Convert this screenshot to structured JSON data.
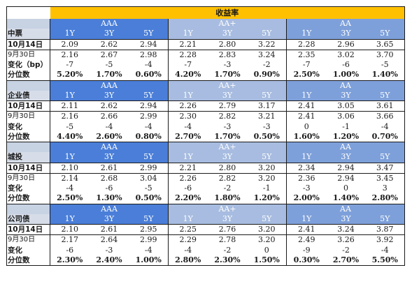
{
  "title": "收益率",
  "ratings": [
    "AAA",
    "AA+",
    "AA"
  ],
  "tenors": [
    "1Y",
    "3Y",
    "5Y"
  ],
  "sections": [
    {
      "name": "中票",
      "rows": [
        {
          "label": "10月14日",
          "values": [
            "2.09",
            "2.62",
            "2.94",
            "2.21",
            "2.80",
            "3.22",
            "2.28",
            "2.96",
            "3.65"
          ]
        },
        {
          "label": "9月30日",
          "values": [
            "2.16",
            "2.67",
            "2.98",
            "2.28",
            "2.83",
            "3.24",
            "2.35",
            "3.02",
            "3.70"
          ]
        },
        {
          "label": "变化（bp）",
          "values": [
            "-7",
            "-5",
            "-4",
            "-7",
            "-3",
            "-2",
            "-7",
            "-6",
            "-5"
          ]
        },
        {
          "label": "分位数",
          "values": [
            "5.20%",
            "1.70%",
            "0.60%",
            "4.20%",
            "1.70%",
            "0.90%",
            "2.50%",
            "1.00%",
            "1.40%"
          ]
        }
      ]
    },
    {
      "name": "企业债",
      "rows": [
        {
          "label": "10月14日",
          "values": [
            "2.11",
            "2.62",
            "2.94",
            "2.26",
            "2.79",
            "3.17",
            "2.41",
            "3.05",
            "3.61"
          ]
        },
        {
          "label": "9月30日",
          "values": [
            "2.16",
            "2.66",
            "2.99",
            "2.30",
            "2.82",
            "3.21",
            "2.41",
            "3.06",
            "3.66"
          ]
        },
        {
          "label": "变化",
          "values": [
            "-5",
            "-4",
            "-4",
            "-4",
            "-3",
            "-3",
            "0",
            "-1",
            "-4"
          ]
        },
        {
          "label": "分位数",
          "values": [
            "4.40%",
            "2.60%",
            "0.80%",
            "2.70%",
            "1.70%",
            "0.50%",
            "1.60%",
            "1.20%",
            "0.70%"
          ]
        }
      ]
    },
    {
      "name": "城投",
      "rows": [
        {
          "label": "10月14日",
          "values": [
            "2.10",
            "2.61",
            "2.99",
            "2.21",
            "2.80",
            "3.20",
            "2.34",
            "2.94",
            "3.47"
          ]
        },
        {
          "label": "9月30日",
          "values": [
            "2.14",
            "2.68",
            "3.04",
            "2.26",
            "2.82",
            "3.20",
            "2.36",
            "2.94",
            "3.45"
          ]
        },
        {
          "label": "变化",
          "values": [
            "-4",
            "-6",
            "-5",
            "-6",
            "-2",
            "-1",
            "-3",
            "0",
            "3"
          ]
        },
        {
          "label": "分位数",
          "values": [
            "2.50%",
            "1.30%",
            "0.50%",
            "2.20%",
            "1.80%",
            "1.20%",
            "2.00%",
            "1.40%",
            "2.80%"
          ]
        }
      ]
    },
    {
      "name": "公司债",
      "rows": [
        {
          "label": "10月14日",
          "values": [
            "2.10",
            "2.61",
            "2.95",
            "2.25",
            "2.76",
            "3.20",
            "2.41",
            "3.24",
            "3.87"
          ]
        },
        {
          "label": "9月30日",
          "values": [
            "2.17",
            "2.64",
            "2.99",
            "2.29",
            "2.78",
            "3.20",
            "2.49",
            "3.26",
            "3.92"
          ]
        },
        {
          "label": "变化",
          "values": [
            "-6",
            "-3",
            "-4",
            "-4",
            "-2",
            "0",
            "-9",
            "-2",
            "-4"
          ]
        },
        {
          "label": "分位数",
          "values": [
            "2.30%",
            "2.40%",
            "1.00%",
            "2.80%",
            "2.30%",
            "1.50%",
            "0.30%",
            "2.70%",
            "5.50%"
          ]
        }
      ]
    }
  ]
}
